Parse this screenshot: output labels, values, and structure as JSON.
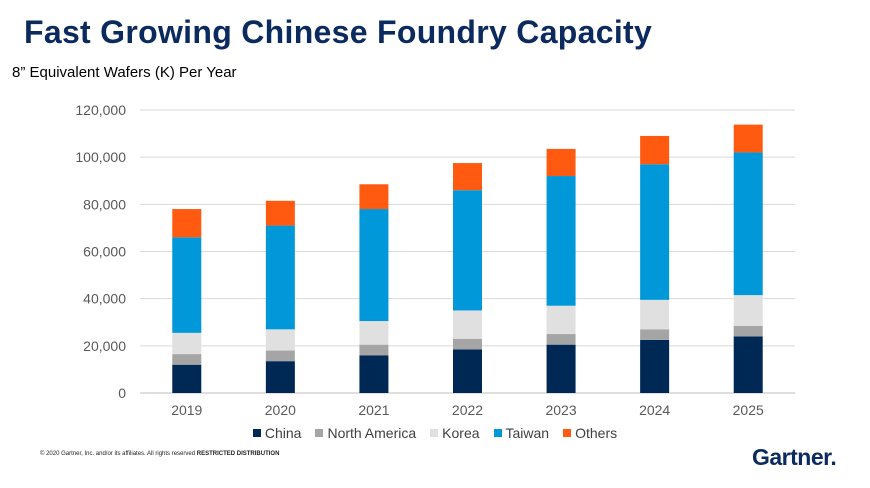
{
  "page": {
    "title": "Fast Growing Chinese Foundry Capacity",
    "subtitle": "8” Equivalent Wafers (K) Per Year",
    "footer_text": "© 2020 Gartner, Inc. and/or its affiliates. All rights reserved",
    "footer_bold": "RESTRICTED DISTRIBUTION",
    "logo": "Gartner"
  },
  "chart_data": {
    "type": "bar",
    "stacked": true,
    "categories": [
      "2019",
      "2020",
      "2021",
      "2022",
      "2023",
      "2024",
      "2025"
    ],
    "series": [
      {
        "name": "China",
        "color": "#002855",
        "values": [
          12000,
          13500,
          16000,
          18500,
          20500,
          22500,
          24000
        ]
      },
      {
        "name": "North America",
        "color": "#a5a5a5",
        "values": [
          4500,
          4500,
          4500,
          4500,
          4500,
          4500,
          4500
        ]
      },
      {
        "name": "Korea",
        "color": "#e0e0e0",
        "values": [
          9000,
          9000,
          10000,
          12000,
          12000,
          12500,
          13000
        ]
      },
      {
        "name": "Taiwan",
        "color": "#0098d8",
        "values": [
          40500,
          44000,
          47500,
          51000,
          55000,
          57500,
          60500
        ]
      },
      {
        "name": "Others",
        "color": "#ff5a10",
        "values": [
          12000,
          10500,
          10500,
          11500,
          11500,
          12000,
          11800
        ]
      }
    ],
    "ylim": [
      0,
      120000
    ],
    "yticks": [
      "0",
      "20,000",
      "40,000",
      "60,000",
      "80,000",
      "100,000",
      "120,000"
    ],
    "grid": true,
    "legend_position": "bottom"
  }
}
